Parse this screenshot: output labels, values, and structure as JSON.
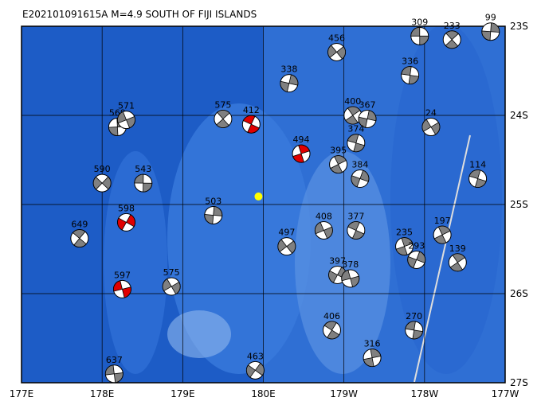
{
  "map": {
    "title": "E202101091615A M=4.9 SOUTH OF FIJI ISLANDS",
    "lonlim": [
      177,
      183
    ],
    "latlim": [
      -27,
      -23
    ],
    "lonticks": [
      {
        "value": 177,
        "label": "177E"
      },
      {
        "value": 178,
        "label": "178E"
      },
      {
        "value": 179,
        "label": "179E"
      },
      {
        "value": 180,
        "label": "180E"
      },
      {
        "value": 181,
        "label": "179W"
      },
      {
        "value": 182,
        "label": "178W"
      },
      {
        "value": 183,
        "label": "177W"
      }
    ],
    "latticks": [
      {
        "value": -23,
        "label": "23S"
      },
      {
        "value": -24,
        "label": "24S"
      },
      {
        "value": -25,
        "label": "25S"
      },
      {
        "value": -26,
        "label": "26S"
      },
      {
        "value": -27,
        "label": "27S"
      }
    ],
    "grid": true,
    "ball_color": "#808080",
    "epicenter": {
      "lon": 179.94,
      "lat": -24.91,
      "color": "#ffff00"
    },
    "events": [
      {
        "depth": "309",
        "lon": 181.94,
        "lat": -23.11
      },
      {
        "depth": "233",
        "lon": 182.34,
        "lat": -23.15
      },
      {
        "depth": "99",
        "lon": 182.82,
        "lat": -23.06
      },
      {
        "depth": "456",
        "lon": 180.91,
        "lat": -23.29
      },
      {
        "depth": "336",
        "lon": 181.82,
        "lat": -23.55
      },
      {
        "depth": "400",
        "lon": 181.11,
        "lat": -24.0
      },
      {
        "depth": "367",
        "lon": 181.29,
        "lat": -24.04
      },
      {
        "depth": "24",
        "lon": 182.08,
        "lat": -24.13
      },
      {
        "depth": "374",
        "lon": 181.15,
        "lat": -24.31
      },
      {
        "depth": "395",
        "lon": 180.93,
        "lat": -24.55
      },
      {
        "depth": "384",
        "lon": 181.2,
        "lat": -24.71
      },
      {
        "depth": "408",
        "lon": 180.75,
        "lat": -25.29
      },
      {
        "depth": "377",
        "lon": 181.15,
        "lat": -25.29
      },
      {
        "depth": "235",
        "lon": 181.75,
        "lat": -25.47
      },
      {
        "depth": "397",
        "lon": 180.92,
        "lat": -25.79
      },
      {
        "depth": "378",
        "lon": 181.08,
        "lat": -25.83
      },
      {
        "depth": "406",
        "lon": 180.85,
        "lat": -26.41
      },
      {
        "depth": "316",
        "lon": 181.35,
        "lat": -26.72
      },
      {
        "depth": "463",
        "lon": 179.9,
        "lat": -26.86
      },
      {
        "depth": "637",
        "lon": 178.15,
        "lat": -26.9
      },
      {
        "depth": "649",
        "lon": 177.72,
        "lat": -25.38
      },
      {
        "depth": "569",
        "lon": 178.19,
        "lat": -24.13
      },
      {
        "depth": "590",
        "lon": 178.0,
        "lat": -24.76
      },
      {
        "depth": "543",
        "lon": 178.51,
        "lat": -24.76
      },
      {
        "depth": "575",
        "lon": 179.5,
        "lat": -24.04
      },
      {
        "depth": "503",
        "lon": 179.38,
        "lat": -25.12
      },
      {
        "depth": "497",
        "lon": 180.29,
        "lat": -25.47
      },
      {
        "depth": "270",
        "lon": 181.87,
        "lat": -26.41
      },
      {
        "depth": "139",
        "lon": 182.41,
        "lat": -25.65
      },
      {
        "depth": "338",
        "lon": 180.32,
        "lat": -23.64
      },
      {
        "depth": "575",
        "lon": 178.86,
        "lat": -25.92
      },
      {
        "depth": "114",
        "lon": 182.66,
        "lat": -24.71
      },
      {
        "depth": "197",
        "lon": 182.22,
        "lat": -25.34
      },
      {
        "depth": "293",
        "lon": 181.9,
        "lat": -25.62
      },
      {
        "depth": "571",
        "lon": 178.3,
        "lat": -24.05,
        "color": "#808080"
      },
      {
        "depth": "412",
        "lon": 179.85,
        "lat": -24.1,
        "color": "#e00000"
      },
      {
        "depth": "494",
        "lon": 180.47,
        "lat": -24.43,
        "color": "#e00000"
      },
      {
        "depth": "598",
        "lon": 178.3,
        "lat": -25.2,
        "color": "#e00000"
      },
      {
        "depth": "597",
        "lon": 178.25,
        "lat": -25.95,
        "color": "#e00000"
      }
    ]
  }
}
